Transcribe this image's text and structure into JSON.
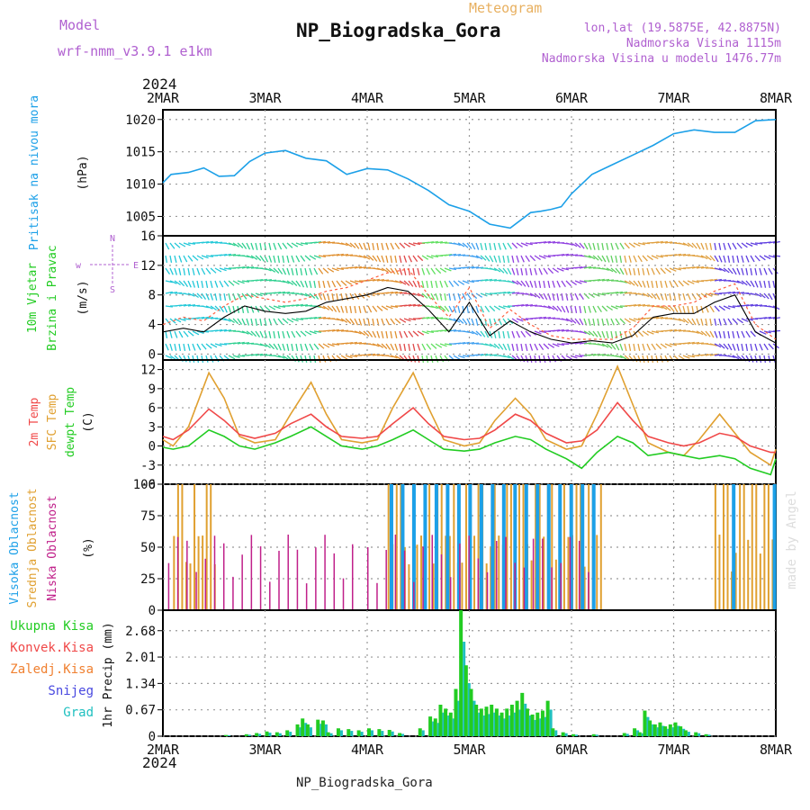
{
  "header": {
    "model_label": "Model",
    "model_name": "wrf-nmm_v3.9.1 e1km",
    "title": "NP_Biogradska_Gora",
    "meteogram": "Meteogram",
    "lonlat": "lon,lat (19.5875E, 42.8875N)",
    "altitude": "Nadmorska Visina 1115m",
    "model_altitude": "Nadmorska Visina u modelu 1476.77m",
    "footer": "NP_Biogradska_Gora",
    "credit": "made by Angel",
    "year_top": "2024",
    "year_bottom": "2024"
  },
  "colors": {
    "pressure": "#1ca0e8",
    "wind_speed": "#000000",
    "wind_gust": "#ff6040",
    "t2m": "#f04848",
    "sfc": "#e0a030",
    "dewpoint": "#22cc22",
    "cloud_high": "#1ca0e8",
    "cloud_mid": "#e0a030",
    "cloud_low": "#c0208a",
    "precip_total": "#22cc22",
    "precip_conv": "#f04848",
    "precip_frozen": "#f08030",
    "precip_snow": "#4848e0",
    "precip_hail": "#20c0c0",
    "header_purple": "#b060d0",
    "header_orange": "#e8b060",
    "grid": "#999999"
  },
  "chart_data": [
    {
      "type": "line",
      "title": "Pritisak na nivou mora",
      "ylabel": "Pritisak na nivou mora",
      "unit_label": "(hPa)",
      "x_ticks": [
        "2MAR",
        "3MAR",
        "4MAR",
        "5MAR",
        "6MAR",
        "7MAR",
        "8MAR"
      ],
      "ylim": [
        1002,
        1021.5
      ],
      "y_ticks": [
        1005,
        1010,
        1015,
        1020
      ],
      "grid": true,
      "x_days": [
        0,
        0.08,
        0.25,
        0.4,
        0.55,
        0.7,
        0.85,
        1.0,
        1.2,
        1.4,
        1.6,
        1.8,
        2.0,
        2.2,
        2.4,
        2.6,
        2.8,
        3.0,
        3.2,
        3.4,
        3.6,
        3.7,
        3.8,
        3.9,
        4.0,
        4.2,
        4.4,
        4.6,
        4.8,
        5.0,
        5.2,
        5.4,
        5.6,
        5.8,
        6.0
      ],
      "series": [
        {
          "name": "Pritisak na nivou mora",
          "values": [
            1010.2,
            1011.5,
            1011.8,
            1012.5,
            1011.2,
            1011.3,
            1013.5,
            1014.8,
            1015.2,
            1014.0,
            1013.6,
            1011.5,
            1012.4,
            1012.2,
            1010.8,
            1009.0,
            1006.8,
            1005.8,
            1003.8,
            1003.2,
            1005.6,
            1005.8,
            1006.1,
            1006.5,
            1008.5,
            1011.5,
            1013.0,
            1014.5,
            1016.0,
            1017.8,
            1018.4,
            1018.0,
            1018.0,
            1019.8,
            1020.0
          ]
        }
      ]
    },
    {
      "type": "line",
      "title": "10m Vjetar Brzina i Pravac",
      "ylabel": "10m Vjetar Brzina i Pravac",
      "unit_label": "(m/s)",
      "compass": [
        "w",
        "N",
        "E",
        "S"
      ],
      "ylim": [
        -0.8,
        16
      ],
      "y_ticks": [
        0,
        4,
        8,
        12,
        16
      ],
      "grid": true,
      "x_days": [
        0,
        0.2,
        0.4,
        0.6,
        0.8,
        1.0,
        1.2,
        1.4,
        1.6,
        1.8,
        2.0,
        2.2,
        2.4,
        2.6,
        2.8,
        3.0,
        3.2,
        3.4,
        3.6,
        3.8,
        4.0,
        4.2,
        4.4,
        4.6,
        4.8,
        5.0,
        5.2,
        5.4,
        5.6,
        5.8,
        6.0
      ],
      "series": [
        {
          "name": "speed",
          "values": [
            3,
            3.5,
            3.0,
            5.0,
            6.5,
            5.8,
            5.5,
            5.8,
            7.0,
            7.5,
            8.0,
            9.0,
            8.5,
            6.0,
            3.0,
            7.0,
            2.5,
            4.5,
            3.0,
            2.0,
            1.5,
            1.8,
            1.5,
            2.5,
            5.0,
            5.5,
            5.5,
            7.0,
            8.0,
            3.0,
            1.5
          ]
        },
        {
          "name": "gust",
          "values": [
            4,
            5.0,
            4.5,
            6.5,
            8.0,
            7.5,
            7.0,
            7.5,
            8.5,
            9.0,
            10.0,
            11.0,
            11.5,
            8.0,
            5.0,
            9.0,
            3.5,
            6.0,
            4.0,
            2.5,
            2.0,
            2.0,
            2.0,
            3.5,
            6.5,
            6.5,
            7.0,
            8.5,
            9.5,
            4.0,
            2.0
          ]
        }
      ]
    },
    {
      "type": "line",
      "title": "2m Temp / SFC Temp / dewpt Temp",
      "ylabel": "2m Temp SFC Temp dewpt Temp",
      "unit_label": "(C)",
      "ylim": [
        -6,
        13.5
      ],
      "y_ticks": [
        -6,
        -3,
        0,
        3,
        6,
        9,
        12
      ],
      "grid": true,
      "x_days": [
        0,
        0.1,
        0.25,
        0.45,
        0.6,
        0.75,
        0.9,
        1.1,
        1.25,
        1.45,
        1.6,
        1.75,
        1.95,
        2.1,
        2.25,
        2.45,
        2.6,
        2.75,
        2.95,
        3.1,
        3.25,
        3.45,
        3.6,
        3.75,
        3.95,
        4.1,
        4.25,
        4.45,
        4.6,
        4.75,
        4.95,
        5.1,
        5.25,
        5.45,
        5.6,
        5.75,
        5.95,
        6.0
      ],
      "series": [
        {
          "name": "2m Temp",
          "values": [
            1.5,
            1.0,
            2.5,
            5.8,
            4.0,
            1.8,
            1.2,
            2.0,
            3.5,
            5.0,
            3.0,
            1.5,
            1.2,
            1.5,
            3.5,
            6.0,
            3.5,
            1.5,
            1.0,
            1.2,
            2.5,
            5.0,
            4.0,
            2.0,
            0.5,
            0.8,
            2.5,
            6.8,
            4.0,
            1.5,
            0.5,
            0.0,
            0.5,
            2.0,
            1.5,
            0.0,
            -1.0,
            -1.0
          ]
        },
        {
          "name": "SFC Temp",
          "values": [
            1.0,
            0.0,
            3.0,
            11.5,
            7.5,
            1.5,
            0.5,
            1.0,
            5.0,
            10.0,
            5.0,
            1.0,
            0.5,
            1.0,
            6.0,
            11.5,
            6.0,
            1.0,
            0.0,
            0.5,
            4.0,
            7.5,
            5.0,
            1.0,
            -0.5,
            0.0,
            5.0,
            12.5,
            6.5,
            0.5,
            -1.0,
            -1.5,
            1.0,
            5.0,
            2.0,
            -1.0,
            -3.0,
            -0.5
          ]
        },
        {
          "name": "dewpt Temp",
          "values": [
            -0.2,
            -0.5,
            0.0,
            2.5,
            1.5,
            0.0,
            -0.5,
            0.5,
            1.5,
            3.0,
            1.5,
            0.0,
            -0.5,
            0.0,
            1.0,
            2.5,
            1.0,
            -0.5,
            -0.8,
            -0.5,
            0.5,
            1.5,
            1.0,
            -0.5,
            -2.0,
            -3.5,
            -1.0,
            1.5,
            0.5,
            -1.5,
            -1.0,
            -1.5,
            -2.0,
            -1.5,
            -2.0,
            -3.5,
            -4.5,
            -2.0
          ]
        }
      ]
    },
    {
      "type": "bar",
      "title": "Visoka / Srednja / Niska Oblacnost",
      "ylabel": "Visoka Oblacnost Srednja Oblacnost Niska Oblacnost",
      "unit_label": "(%)",
      "ylim": [
        0,
        100
      ],
      "y_ticks": [
        0,
        25,
        50,
        75,
        100
      ],
      "grid": true,
      "series": [
        {
          "name": "Visoka Oblacnost",
          "segments": [
            [
              2.2,
              4.3
            ],
            [
              5.55,
              5.6
            ],
            [
              5.95,
              6.0
            ]
          ],
          "value": 100
        },
        {
          "name": "Srednja Oblacnost",
          "segments": [
            [
              0.1,
              0.5
            ],
            [
              2.2,
              4.3
            ],
            [
              5.4,
              6.0
            ]
          ],
          "value": 100
        },
        {
          "name": "Niska Oblacnost",
          "segments": [
            [
              0.05,
              1.9
            ],
            [
              2.0,
              4.2
            ]
          ],
          "value": 40
        }
      ]
    },
    {
      "type": "bar",
      "title": "1hr Precip",
      "ylabel": "1hr Precip",
      "unit_label": "(mm)",
      "ylim": [
        0,
        3.2
      ],
      "y_ticks": [
        0,
        0.67,
        1.34,
        2.01,
        2.68
      ],
      "y_tick_labels": [
        "0",
        "0.67",
        "1.34",
        "2.01",
        "2.68"
      ],
      "grid": true,
      "legend": [
        "Ukupna Kisa",
        "Konvek.Kisa",
        "Zaledj.Kisa",
        "Snijeg",
        "Grad"
      ],
      "x_days": [
        0.6,
        0.8,
        0.9,
        1.0,
        1.1,
        1.2,
        1.3,
        1.35,
        1.4,
        1.5,
        1.55,
        1.6,
        1.7,
        1.8,
        1.9,
        2.0,
        2.1,
        2.2,
        2.3,
        2.5,
        2.6,
        2.65,
        2.7,
        2.75,
        2.8,
        2.85,
        2.9,
        2.95,
        3.0,
        3.05,
        3.1,
        3.15,
        3.2,
        3.25,
        3.3,
        3.35,
        3.4,
        3.45,
        3.5,
        3.55,
        3.6,
        3.65,
        3.7,
        3.75,
        3.8,
        3.9,
        4.0,
        4.2,
        4.5,
        4.6,
        4.65,
        4.7,
        4.75,
        4.8,
        4.85,
        4.9,
        4.95,
        5.0,
        5.05,
        5.1,
        5.2,
        5.3
      ],
      "series": [
        {
          "name": "Ukupna Kisa",
          "values": [
            0.03,
            0.05,
            0.08,
            0.12,
            0.1,
            0.15,
            0.3,
            0.45,
            0.3,
            0.42,
            0.4,
            0.1,
            0.2,
            0.18,
            0.15,
            0.2,
            0.18,
            0.16,
            0.08,
            0.2,
            0.5,
            0.45,
            0.8,
            0.7,
            0.6,
            1.2,
            3.2,
            1.8,
            1.2,
            0.8,
            0.7,
            0.75,
            0.8,
            0.7,
            0.6,
            0.7,
            0.8,
            0.9,
            1.1,
            0.7,
            0.55,
            0.6,
            0.65,
            0.9,
            0.2,
            0.1,
            0.05,
            0.05,
            0.08,
            0.2,
            0.1,
            0.65,
            0.4,
            0.3,
            0.35,
            0.25,
            0.3,
            0.35,
            0.25,
            0.15,
            0.1,
            0.05
          ]
        }
      ]
    }
  ]
}
